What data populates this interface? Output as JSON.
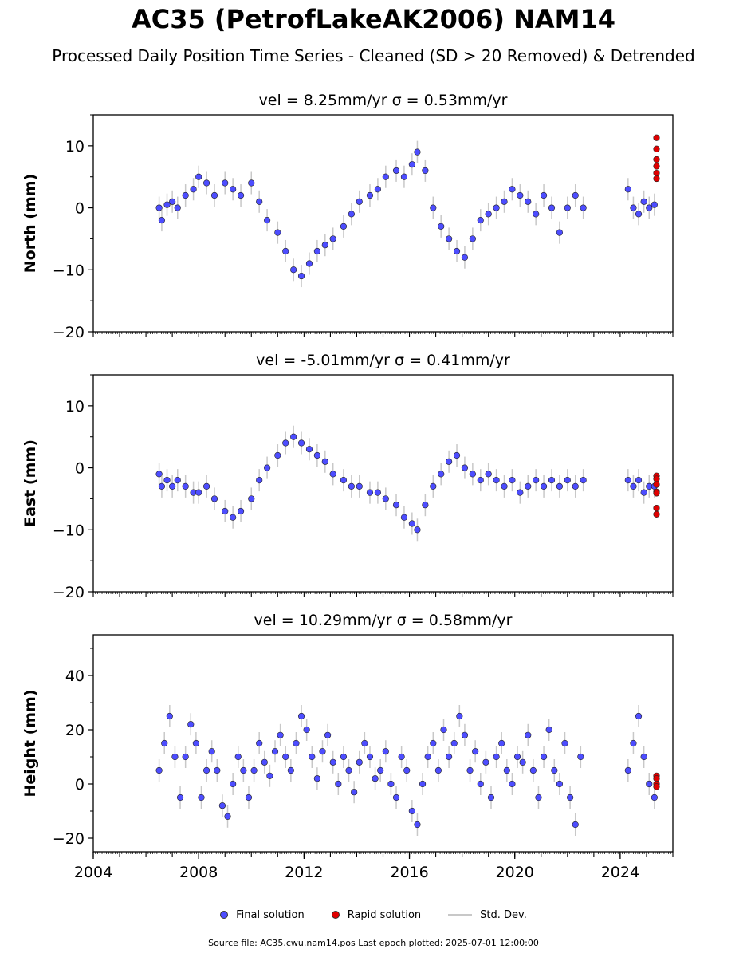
{
  "title": "AC35 (PetrofLakeAK2006) NAM14",
  "subtitle": "Processed Daily Position Time Series - Cleaned (SD > 20 Removed) & Detrended",
  "legend": {
    "final": "Final solution",
    "rapid": "Rapid solution",
    "stddev": "Std. Dev."
  },
  "footer": "Source file: AC35.cwu.nam14.pos  Last epoch plotted: 2025-07-01 12:00:00",
  "colors": {
    "final": "#4d4dff",
    "rapid": "#e00000",
    "stddev": "#9a9a9a",
    "edge": "#222222"
  },
  "chart_data": [
    {
      "type": "scatter",
      "title": "vel = 8.25mm/yr   σ = 0.53mm/yr",
      "ylabel": "North (mm)",
      "xlim": [
        2004,
        2026
      ],
      "ylim": [
        -20,
        15
      ],
      "yticks": [
        -20,
        -10,
        0,
        10
      ],
      "xticks": [],
      "series": [
        {
          "name": "Final solution",
          "x": [
            2006.5,
            2006.6,
            2006.8,
            2007.0,
            2007.2,
            2007.5,
            2007.8,
            2008.0,
            2008.3,
            2008.6,
            2009.0,
            2009.3,
            2009.6,
            2010.0,
            2010.3,
            2010.6,
            2011.0,
            2011.3,
            2011.6,
            2011.9,
            2012.2,
            2012.5,
            2012.8,
            2013.1,
            2013.5,
            2013.8,
            2014.1,
            2014.5,
            2014.8,
            2015.1,
            2015.5,
            2015.8,
            2016.1,
            2016.3,
            2016.6,
            2016.9,
            2017.2,
            2017.5,
            2017.8,
            2018.1,
            2018.4,
            2018.7,
            2019.0,
            2019.3,
            2019.6,
            2019.9,
            2020.2,
            2020.5,
            2020.8,
            2021.1,
            2021.4,
            2021.7,
            2022.0,
            2022.3,
            2022.6,
            2024.3,
            2024.5,
            2024.7,
            2024.9,
            2025.1,
            2025.3
          ],
          "y": [
            0,
            -2,
            0.5,
            1,
            0,
            2,
            3,
            5,
            4,
            2,
            4,
            3,
            2,
            4,
            1,
            -2,
            -4,
            -7,
            -10,
            -11,
            -9,
            -7,
            -6,
            -5,
            -3,
            -1,
            1,
            2,
            3,
            5,
            6,
            5,
            7,
            9,
            6,
            0,
            -3,
            -5,
            -7,
            -8,
            -5,
            -2,
            -1,
            0,
            1,
            3,
            2,
            1,
            -1,
            2,
            0,
            -4,
            0,
            2,
            0,
            3,
            0,
            -1,
            1,
            0,
            0.5
          ]
        },
        {
          "name": "Rapid solution",
          "x": [
            2025.38,
            2025.38,
            2025.38,
            2025.38,
            2025.38,
            2025.38
          ],
          "y": [
            4.7,
            5.6,
            6.7,
            7.8,
            9.5,
            11.3
          ]
        }
      ]
    },
    {
      "type": "scatter",
      "title": "vel = -5.01mm/yr   σ = 0.41mm/yr",
      "ylabel": "East (mm)",
      "xlim": [
        2004,
        2026
      ],
      "ylim": [
        -20,
        15
      ],
      "yticks": [
        -20,
        -10,
        0,
        10
      ],
      "xticks": [],
      "series": [
        {
          "name": "Final solution",
          "x": [
            2006.5,
            2006.6,
            2006.8,
            2007.0,
            2007.2,
            2007.5,
            2007.8,
            2008.0,
            2008.3,
            2008.6,
            2009.0,
            2009.3,
            2009.6,
            2010.0,
            2010.3,
            2010.6,
            2011.0,
            2011.3,
            2011.6,
            2011.9,
            2012.2,
            2012.5,
            2012.8,
            2013.1,
            2013.5,
            2013.8,
            2014.1,
            2014.5,
            2014.8,
            2015.1,
            2015.5,
            2015.8,
            2016.1,
            2016.3,
            2016.6,
            2016.9,
            2017.2,
            2017.5,
            2017.8,
            2018.1,
            2018.4,
            2018.7,
            2019.0,
            2019.3,
            2019.6,
            2019.9,
            2020.2,
            2020.5,
            2020.8,
            2021.1,
            2021.4,
            2021.7,
            2022.0,
            2022.3,
            2022.6,
            2024.3,
            2024.5,
            2024.7,
            2024.9,
            2025.1,
            2025.3
          ],
          "y": [
            -1,
            -3,
            -2,
            -3,
            -2,
            -3,
            -4,
            -4,
            -3,
            -5,
            -7,
            -8,
            -7,
            -5,
            -2,
            0,
            2,
            4,
            5,
            4,
            3,
            2,
            1,
            -1,
            -2,
            -3,
            -3,
            -4,
            -4,
            -5,
            -6,
            -8,
            -9,
            -10,
            -6,
            -3,
            -1,
            1,
            2,
            0,
            -1,
            -2,
            -1,
            -2,
            -3,
            -2,
            -4,
            -3,
            -2,
            -3,
            -2,
            -3,
            -2,
            -3,
            -2,
            -2,
            -3,
            -2,
            -4,
            -3,
            -3
          ]
        },
        {
          "name": "Rapid solution",
          "x": [
            2025.38,
            2025.38,
            2025.38,
            2025.38,
            2025.38,
            2025.38,
            2025.38
          ],
          "y": [
            -1.3,
            -1.8,
            -2.7,
            -3.9,
            -4.1,
            -6.5,
            -7.5
          ]
        }
      ]
    },
    {
      "type": "scatter",
      "title": "vel = 10.29mm/yr   σ = 0.58mm/yr",
      "ylabel": "Height (mm)",
      "xlim": [
        2004,
        2026
      ],
      "ylim": [
        -25,
        55
      ],
      "yticks": [
        -20,
        0,
        20,
        40
      ],
      "xticks": [
        "2004",
        "2008",
        "2012",
        "2016",
        "2020",
        "2024"
      ],
      "series": [
        {
          "name": "Final solution",
          "x": [
            2006.5,
            2006.7,
            2006.9,
            2007.1,
            2007.3,
            2007.5,
            2007.7,
            2007.9,
            2008.1,
            2008.3,
            2008.5,
            2008.7,
            2008.9,
            2009.1,
            2009.3,
            2009.5,
            2009.7,
            2009.9,
            2010.1,
            2010.3,
            2010.5,
            2010.7,
            2010.9,
            2011.1,
            2011.3,
            2011.5,
            2011.7,
            2011.9,
            2012.1,
            2012.3,
            2012.5,
            2012.7,
            2012.9,
            2013.1,
            2013.3,
            2013.5,
            2013.7,
            2013.9,
            2014.1,
            2014.3,
            2014.5,
            2014.7,
            2014.9,
            2015.1,
            2015.3,
            2015.5,
            2015.7,
            2015.9,
            2016.1,
            2016.3,
            2016.5,
            2016.7,
            2016.9,
            2017.1,
            2017.3,
            2017.5,
            2017.7,
            2017.9,
            2018.1,
            2018.3,
            2018.5,
            2018.7,
            2018.9,
            2019.1,
            2019.3,
            2019.5,
            2019.7,
            2019.9,
            2020.1,
            2020.3,
            2020.5,
            2020.7,
            2020.9,
            2021.1,
            2021.3,
            2021.5,
            2021.7,
            2021.9,
            2022.1,
            2022.3,
            2022.5,
            2024.3,
            2024.5,
            2024.7,
            2024.9,
            2025.1,
            2025.3
          ],
          "y": [
            5,
            15,
            25,
            10,
            -5,
            10,
            22,
            15,
            -5,
            5,
            12,
            5,
            -8,
            -12,
            0,
            10,
            5,
            -5,
            5,
            15,
            8,
            3,
            12,
            18,
            10,
            5,
            15,
            25,
            20,
            10,
            2,
            12,
            18,
            8,
            0,
            10,
            5,
            -3,
            8,
            15,
            10,
            2,
            5,
            12,
            0,
            -5,
            10,
            5,
            -10,
            -15,
            0,
            10,
            15,
            5,
            20,
            10,
            15,
            25,
            18,
            5,
            12,
            0,
            8,
            -5,
            10,
            15,
            5,
            0,
            10,
            8,
            18,
            5,
            -5,
            10,
            20,
            5,
            0,
            15,
            -5,
            -15,
            10,
            5,
            15,
            25,
            10,
            0,
            -5
          ]
        },
        {
          "name": "Rapid solution",
          "x": [
            2025.38,
            2025.38,
            2025.38,
            2025.38
          ],
          "y": [
            3,
            2,
            0,
            -1
          ]
        }
      ]
    }
  ]
}
